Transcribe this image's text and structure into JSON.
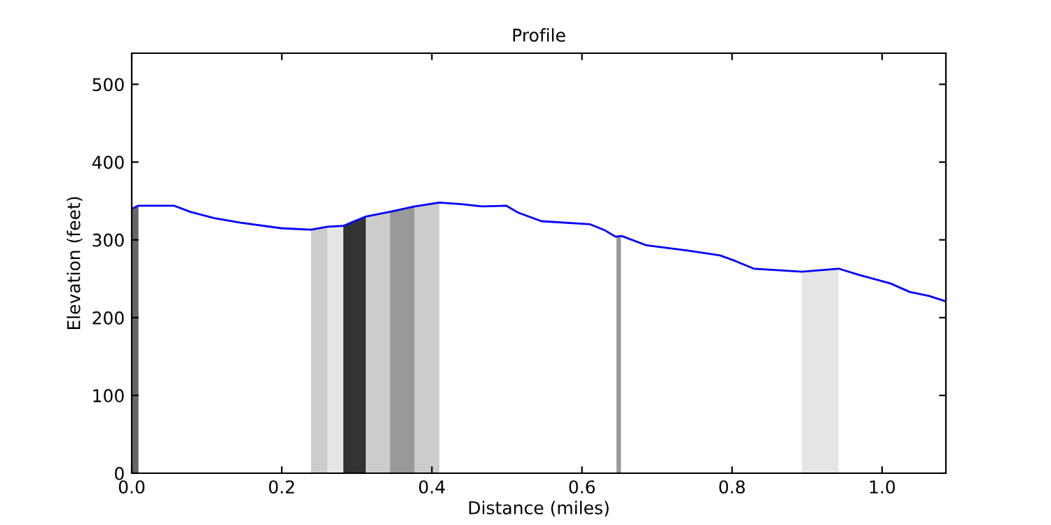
{
  "chart_data": {
    "type": "line",
    "title": "Profile",
    "xlabel": "Distance (miles)",
    "ylabel": "Elevation (feet)",
    "xlim": [
      0,
      1.085
    ],
    "ylim": [
      0,
      540
    ],
    "xticks": [
      {
        "value": 0,
        "label": "0.0"
      },
      {
        "value": 0.2,
        "label": "0.2"
      },
      {
        "value": 0.4,
        "label": "0.4"
      },
      {
        "value": 0.6,
        "label": "0.6"
      },
      {
        "value": 0.8,
        "label": "0.8"
      },
      {
        "value": 1.0,
        "label": "1.0"
      }
    ],
    "yticks": [
      0,
      100,
      200,
      300,
      400,
      500
    ],
    "grid": false,
    "series": [
      {
        "type": "area",
        "color": "#666666",
        "x": [
          0,
          0.009
        ],
        "values": [
          340,
          344
        ]
      },
      {
        "type": "area",
        "color": "#cccccc",
        "x": [
          0.239,
          0.261
        ],
        "values": [
          313,
          317
        ]
      },
      {
        "type": "area",
        "color": "#e5e5e5",
        "x": [
          0.261,
          0.282
        ],
        "values": [
          317,
          318
        ]
      },
      {
        "type": "area",
        "color": "#333333",
        "x": [
          0.282,
          0.312
        ],
        "values": [
          318,
          330
        ]
      },
      {
        "type": "area",
        "color": "#cccccc",
        "x": [
          0.312,
          0.344
        ],
        "values": [
          330,
          336
        ]
      },
      {
        "type": "area",
        "color": "#999999",
        "x": [
          0.344,
          0.377
        ],
        "values": [
          336,
          343
        ]
      },
      {
        "type": "area",
        "color": "#cccccc",
        "x": [
          0.377,
          0.41
        ],
        "values": [
          343,
          348
        ]
      },
      {
        "type": "area",
        "color": "#999999",
        "x": [
          0.646,
          0.652
        ],
        "values": [
          304,
          305
        ]
      },
      {
        "type": "area",
        "color": "#e5e5e5",
        "x": [
          0.893,
          0.942
        ],
        "values": [
          259,
          263
        ]
      },
      {
        "color": "#0000ff",
        "x": [
          0,
          0.009,
          0.056,
          0.078,
          0.11,
          0.145,
          0.199,
          0.239,
          0.261,
          0.282,
          0.312,
          0.344,
          0.377,
          0.41,
          0.439,
          0.467,
          0.499,
          0.515,
          0.546,
          0.611,
          0.631,
          0.645,
          0.653,
          0.686,
          0.742,
          0.784,
          0.804,
          0.829,
          0.893,
          0.942,
          0.969,
          1.011,
          1.037,
          1.062,
          1.085
        ],
        "values": [
          340,
          344,
          344,
          336,
          328,
          322,
          315,
          313,
          317,
          318,
          330,
          336,
          343,
          348,
          346,
          343,
          344,
          335,
          324,
          320,
          312,
          304,
          305,
          293,
          286,
          280,
          273,
          263,
          259,
          263,
          255,
          244,
          233,
          228,
          221
        ]
      }
    ]
  }
}
